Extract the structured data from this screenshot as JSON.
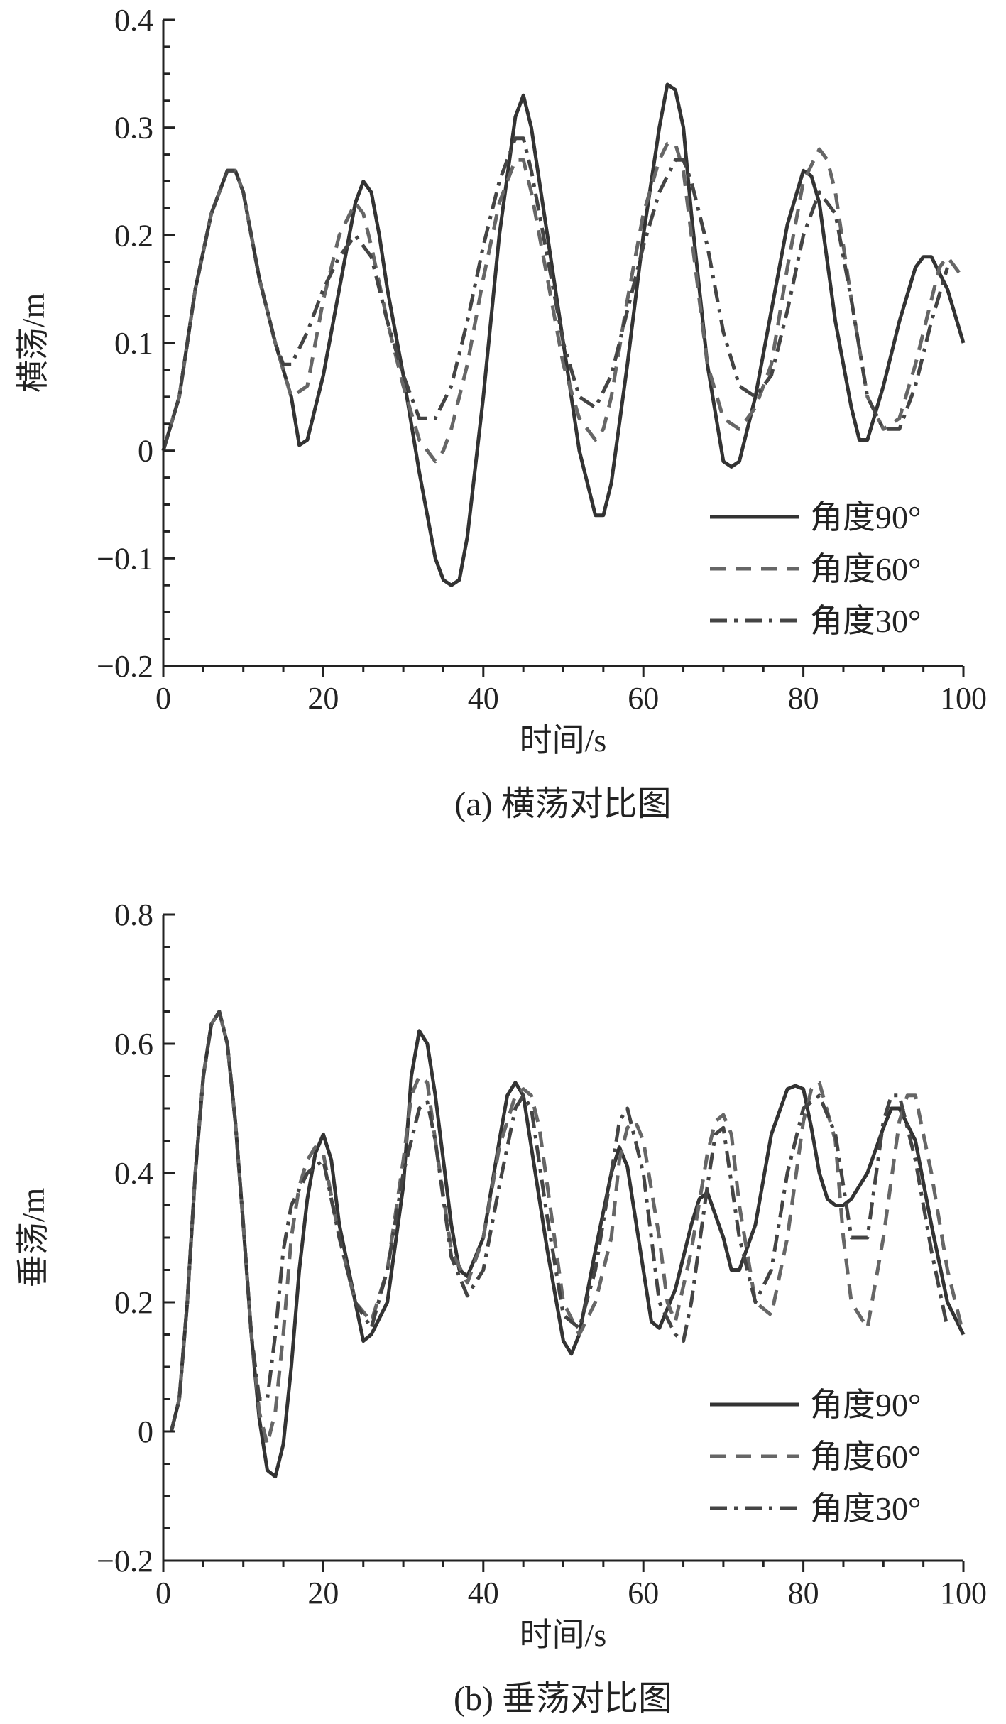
{
  "chart_data": [
    {
      "type": "line",
      "caption": "(a) 横荡对比图",
      "xlabel": "时间/s",
      "ylabel": "横荡/m",
      "xlim": [
        0,
        100
      ],
      "ylim": [
        -0.2,
        0.4
      ],
      "xticks": [
        "0",
        "20",
        "40",
        "60",
        "80",
        "100"
      ],
      "yticks": [
        "−0.2",
        "−0.1",
        "0",
        "0.1",
        "0.2",
        "0.3",
        "0.4"
      ],
      "legend_position": "bottom-right",
      "series": [
        {
          "name": "角度90°",
          "style": "solid",
          "color": "#333333",
          "x": [
            0,
            2,
            4,
            6,
            8,
            9,
            10,
            12,
            14,
            16,
            17,
            18,
            20,
            22,
            24,
            25,
            26,
            27,
            28,
            30,
            32,
            34,
            35,
            36,
            37,
            38,
            40,
            42,
            44,
            45,
            46,
            48,
            50,
            52,
            54,
            55,
            56,
            58,
            60,
            62,
            63,
            64,
            65,
            66,
            68,
            70,
            71,
            72,
            74,
            76,
            78,
            80,
            81,
            82,
            84,
            86,
            87,
            88,
            90,
            92,
            94,
            95,
            96,
            98,
            100
          ],
          "y": [
            0.0,
            0.05,
            0.15,
            0.22,
            0.26,
            0.26,
            0.24,
            0.16,
            0.1,
            0.05,
            0.005,
            0.01,
            0.07,
            0.15,
            0.23,
            0.25,
            0.24,
            0.2,
            0.15,
            0.07,
            -0.02,
            -0.1,
            -0.12,
            -0.125,
            -0.12,
            -0.08,
            0.05,
            0.2,
            0.31,
            0.33,
            0.3,
            0.2,
            0.1,
            0.0,
            -0.06,
            -0.06,
            -0.03,
            0.08,
            0.2,
            0.3,
            0.34,
            0.335,
            0.3,
            0.22,
            0.08,
            -0.01,
            -0.015,
            -0.01,
            0.05,
            0.13,
            0.21,
            0.26,
            0.255,
            0.23,
            0.12,
            0.04,
            0.01,
            0.01,
            0.06,
            0.12,
            0.17,
            0.18,
            0.18,
            0.15,
            0.1
          ]
        },
        {
          "name": "角度60°",
          "style": "dashed",
          "color": "#666666",
          "x": [
            0,
            2,
            4,
            6,
            8,
            9,
            10,
            12,
            14,
            16,
            18,
            20,
            22,
            24,
            25,
            26,
            28,
            30,
            32,
            34,
            35,
            36,
            38,
            40,
            42,
            44,
            45,
            46,
            48,
            50,
            52,
            54,
            55,
            56,
            58,
            60,
            62,
            63,
            64,
            65,
            66,
            68,
            70,
            72,
            74,
            76,
            78,
            80,
            82,
            83,
            84,
            86,
            88,
            90,
            92,
            94,
            96,
            97,
            98,
            100
          ],
          "y": [
            0.0,
            0.05,
            0.15,
            0.22,
            0.26,
            0.26,
            0.24,
            0.16,
            0.1,
            0.05,
            0.06,
            0.14,
            0.2,
            0.23,
            0.22,
            0.19,
            0.12,
            0.06,
            0.01,
            -0.01,
            0.0,
            0.02,
            0.08,
            0.16,
            0.23,
            0.27,
            0.27,
            0.24,
            0.16,
            0.08,
            0.03,
            0.01,
            0.02,
            0.05,
            0.14,
            0.22,
            0.27,
            0.285,
            0.285,
            0.26,
            0.2,
            0.08,
            0.03,
            0.02,
            0.04,
            0.08,
            0.17,
            0.25,
            0.28,
            0.27,
            0.24,
            0.14,
            0.05,
            0.02,
            0.03,
            0.08,
            0.14,
            0.17,
            0.18,
            0.16
          ]
        },
        {
          "name": "角度30°",
          "style": "dashdot",
          "color": "#444444",
          "x": [
            0,
            2,
            4,
            6,
            8,
            9,
            10,
            12,
            14,
            15,
            16,
            18,
            20,
            22,
            24,
            26,
            28,
            30,
            32,
            34,
            36,
            38,
            40,
            42,
            44,
            45,
            46,
            48,
            50,
            52,
            54,
            56,
            58,
            60,
            62,
            64,
            65,
            66,
            68,
            70,
            72,
            74,
            76,
            78,
            80,
            82,
            84,
            86,
            88,
            90,
            92,
            94,
            96,
            98
          ],
          "y": [
            0.0,
            0.05,
            0.15,
            0.22,
            0.26,
            0.26,
            0.24,
            0.16,
            0.1,
            0.08,
            0.08,
            0.11,
            0.15,
            0.18,
            0.2,
            0.18,
            0.12,
            0.07,
            0.03,
            0.03,
            0.06,
            0.12,
            0.19,
            0.25,
            0.29,
            0.29,
            0.26,
            0.18,
            0.1,
            0.05,
            0.04,
            0.07,
            0.13,
            0.19,
            0.24,
            0.27,
            0.27,
            0.25,
            0.19,
            0.11,
            0.06,
            0.05,
            0.07,
            0.13,
            0.2,
            0.24,
            0.22,
            0.14,
            0.05,
            0.02,
            0.02,
            0.06,
            0.12,
            0.17
          ]
        }
      ]
    },
    {
      "type": "line",
      "caption": "(b) 垂荡对比图",
      "xlabel": "时间/s",
      "ylabel": "垂荡/m",
      "xlim": [
        0,
        100
      ],
      "ylim": [
        -0.2,
        0.8
      ],
      "xticks": [
        "0",
        "20",
        "40",
        "60",
        "80",
        "100"
      ],
      "yticks": [
        "−0.2",
        "0",
        "0.2",
        "0.4",
        "0.6",
        "0.8"
      ],
      "legend_position": "bottom-right",
      "series": [
        {
          "name": "角度90°",
          "style": "solid",
          "color": "#333333",
          "x": [
            1,
            2,
            3,
            4,
            5,
            6,
            7,
            8,
            9,
            10,
            11,
            12,
            13,
            14,
            15,
            16,
            17,
            18,
            19,
            20,
            21,
            22,
            24,
            25,
            26,
            28,
            30,
            31,
            32,
            33,
            34,
            36,
            37,
            38,
            40,
            42,
            43,
            44,
            45,
            46,
            48,
            50,
            51,
            52,
            54,
            56,
            57,
            58,
            60,
            61,
            62,
            64,
            66,
            67,
            68,
            70,
            71,
            72,
            74,
            76,
            78,
            79,
            80,
            81,
            82,
            83,
            84,
            85,
            86,
            88,
            90,
            91,
            92,
            94,
            96,
            98,
            100
          ],
          "y": [
            0.0,
            0.05,
            0.2,
            0.4,
            0.55,
            0.63,
            0.65,
            0.6,
            0.48,
            0.32,
            0.15,
            0.02,
            -0.06,
            -0.07,
            -0.02,
            0.1,
            0.25,
            0.36,
            0.43,
            0.46,
            0.42,
            0.32,
            0.2,
            0.14,
            0.15,
            0.2,
            0.38,
            0.55,
            0.62,
            0.6,
            0.52,
            0.32,
            0.25,
            0.24,
            0.3,
            0.45,
            0.52,
            0.54,
            0.52,
            0.44,
            0.28,
            0.14,
            0.12,
            0.15,
            0.28,
            0.4,
            0.44,
            0.41,
            0.25,
            0.17,
            0.16,
            0.22,
            0.32,
            0.36,
            0.37,
            0.3,
            0.25,
            0.25,
            0.32,
            0.46,
            0.53,
            0.535,
            0.53,
            0.47,
            0.4,
            0.36,
            0.35,
            0.35,
            0.36,
            0.4,
            0.47,
            0.5,
            0.5,
            0.45,
            0.32,
            0.2,
            0.15
          ]
        },
        {
          "name": "角度60°",
          "style": "dashed",
          "color": "#666666",
          "x": [
            1,
            2,
            3,
            4,
            5,
            6,
            7,
            8,
            9,
            10,
            11,
            12,
            13,
            14,
            15,
            16,
            17,
            18,
            19,
            20,
            22,
            24,
            26,
            28,
            30,
            31,
            32,
            33,
            34,
            36,
            38,
            40,
            42,
            44,
            45,
            46,
            47,
            48,
            50,
            52,
            54,
            56,
            57,
            58,
            59,
            60,
            62,
            63,
            64,
            66,
            68,
            69,
            70,
            71,
            72,
            74,
            76,
            78,
            80,
            81,
            82,
            84,
            85,
            86,
            88,
            90,
            92,
            93,
            94,
            96,
            98,
            100
          ],
          "y": [
            0.0,
            0.05,
            0.2,
            0.4,
            0.55,
            0.63,
            0.65,
            0.6,
            0.48,
            0.32,
            0.15,
            0.03,
            -0.02,
            0.03,
            0.15,
            0.3,
            0.38,
            0.42,
            0.44,
            0.43,
            0.3,
            0.2,
            0.17,
            0.25,
            0.42,
            0.52,
            0.55,
            0.54,
            0.45,
            0.28,
            0.23,
            0.3,
            0.44,
            0.52,
            0.53,
            0.52,
            0.47,
            0.38,
            0.2,
            0.15,
            0.2,
            0.3,
            0.42,
            0.47,
            0.48,
            0.45,
            0.3,
            0.2,
            0.17,
            0.28,
            0.43,
            0.48,
            0.49,
            0.46,
            0.35,
            0.2,
            0.18,
            0.3,
            0.48,
            0.53,
            0.54,
            0.45,
            0.3,
            0.2,
            0.16,
            0.3,
            0.48,
            0.52,
            0.52,
            0.4,
            0.25,
            0.15
          ]
        },
        {
          "name": "角度30°",
          "style": "dashdot",
          "color": "#444444",
          "x": [
            1,
            2,
            3,
            4,
            5,
            6,
            7,
            8,
            9,
            10,
            11,
            12,
            13,
            14,
            15,
            16,
            18,
            20,
            22,
            24,
            26,
            28,
            30,
            32,
            33,
            34,
            36,
            38,
            40,
            42,
            44,
            45,
            46,
            48,
            50,
            52,
            54,
            56,
            57,
            58,
            60,
            62,
            64,
            65,
            66,
            68,
            69,
            70,
            72,
            74,
            76,
            78,
            80,
            82,
            84,
            86,
            88,
            90,
            91,
            92,
            94,
            96,
            98
          ],
          "y": [
            0.0,
            0.05,
            0.2,
            0.4,
            0.55,
            0.63,
            0.65,
            0.6,
            0.48,
            0.32,
            0.15,
            0.05,
            0.05,
            0.15,
            0.28,
            0.35,
            0.4,
            0.42,
            0.3,
            0.2,
            0.16,
            0.25,
            0.4,
            0.5,
            0.51,
            0.45,
            0.27,
            0.21,
            0.25,
            0.38,
            0.5,
            0.52,
            0.5,
            0.33,
            0.18,
            0.16,
            0.25,
            0.4,
            0.48,
            0.5,
            0.4,
            0.2,
            0.15,
            0.14,
            0.2,
            0.38,
            0.46,
            0.47,
            0.3,
            0.2,
            0.25,
            0.4,
            0.5,
            0.52,
            0.46,
            0.3,
            0.3,
            0.48,
            0.52,
            0.52,
            0.42,
            0.28,
            0.16
          ]
        }
      ]
    }
  ]
}
